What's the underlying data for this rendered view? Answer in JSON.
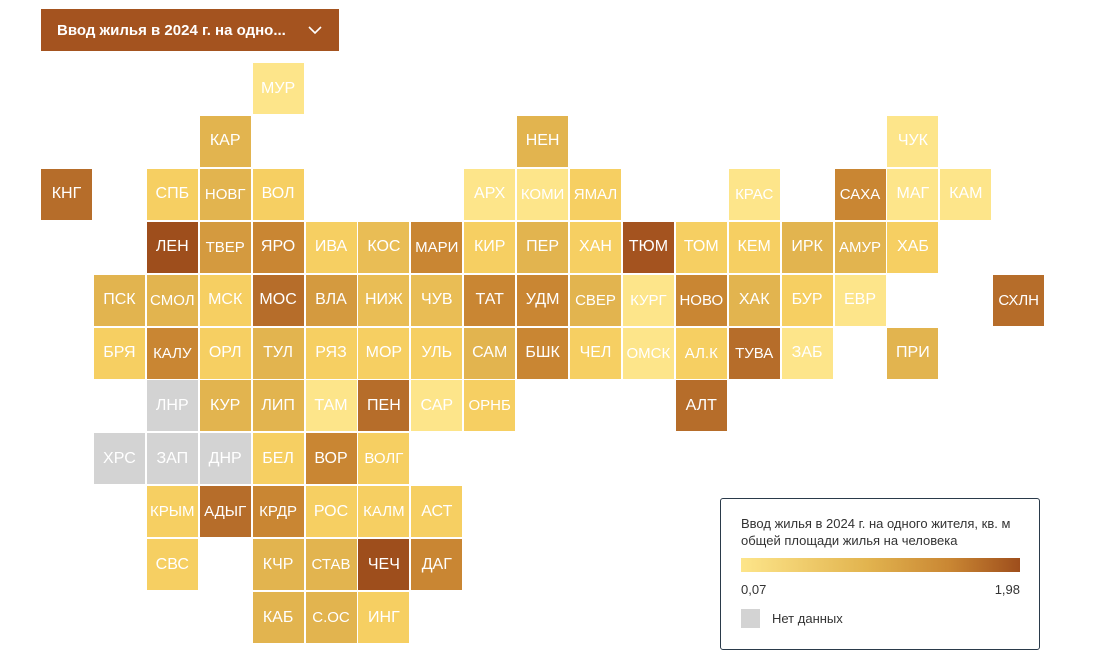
{
  "dropdown": {
    "label": "Ввод жилья в 2024 г. на одно...",
    "icon": "chevron-down-icon"
  },
  "legend": {
    "title": "Ввод жилья в 2024 г. на одного жителя, кв. м общей площади жилья на человека",
    "min_label": "0,07",
    "max_label": "1,98",
    "nodata_label": "Нет данных",
    "nodata_color": "#d3d3d3",
    "color_scale": [
      "#fde58a",
      "#e2b44f",
      "#c98633",
      "#9e4e1c"
    ]
  },
  "regions": [
    {
      "code": "МУР",
      "row": 0,
      "col": 4,
      "color": "#fde58a"
    },
    {
      "code": "КАР",
      "row": 1,
      "col": 3,
      "color": "#e2b44f"
    },
    {
      "code": "НЕН",
      "row": 1,
      "col": 9,
      "color": "#e2b44f"
    },
    {
      "code": "ЧУК",
      "row": 1,
      "col": 16,
      "color": "#fde58a"
    },
    {
      "code": "КНГ",
      "row": 2,
      "col": 0,
      "color": "#b66d2a"
    },
    {
      "code": "СПБ",
      "row": 2,
      "col": 2,
      "color": "#f6cf62"
    },
    {
      "code": "НОВГ",
      "row": 2,
      "col": 3,
      "color": "#e2b44f"
    },
    {
      "code": "ВОЛ",
      "row": 2,
      "col": 4,
      "color": "#f6cf62"
    },
    {
      "code": "АРХ",
      "row": 2,
      "col": 8,
      "color": "#fde58a"
    },
    {
      "code": "КОМИ",
      "row": 2,
      "col": 9,
      "color": "#fde58a"
    },
    {
      "code": "ЯМАЛ",
      "row": 2,
      "col": 10,
      "color": "#f6cf62"
    },
    {
      "code": "КРАС",
      "row": 2,
      "col": 13,
      "color": "#fde58a"
    },
    {
      "code": "САХА",
      "row": 2,
      "col": 15,
      "color": "#c98633"
    },
    {
      "code": "МАГ",
      "row": 2,
      "col": 16,
      "color": "#fde58a"
    },
    {
      "code": "КАМ",
      "row": 2,
      "col": 17,
      "color": "#fde58a"
    },
    {
      "code": "ЛЕН",
      "row": 3,
      "col": 2,
      "color": "#9e4e1c"
    },
    {
      "code": "ТВЕР",
      "row": 3,
      "col": 3,
      "color": "#d49a3f"
    },
    {
      "code": "ЯРО",
      "row": 3,
      "col": 4,
      "color": "#c98633"
    },
    {
      "code": "ИВА",
      "row": 3,
      "col": 5,
      "color": "#f6cf62"
    },
    {
      "code": "КОС",
      "row": 3,
      "col": 6,
      "color": "#e9bd55"
    },
    {
      "code": "МАРИ",
      "row": 3,
      "col": 7,
      "color": "#c98633"
    },
    {
      "code": "КИР",
      "row": 3,
      "col": 8,
      "color": "#f6cf62"
    },
    {
      "code": "ПЕР",
      "row": 3,
      "col": 9,
      "color": "#e2b44f"
    },
    {
      "code": "ХАН",
      "row": 3,
      "col": 10,
      "color": "#f6cf62"
    },
    {
      "code": "ТЮМ",
      "row": 3,
      "col": 11,
      "color": "#a4531f"
    },
    {
      "code": "ТОМ",
      "row": 3,
      "col": 12,
      "color": "#f6cf62"
    },
    {
      "code": "КЕМ",
      "row": 3,
      "col": 13,
      "color": "#f6cf62"
    },
    {
      "code": "ИРК",
      "row": 3,
      "col": 14,
      "color": "#e2b44f"
    },
    {
      "code": "АМУР",
      "row": 3,
      "col": 15,
      "color": "#e2b44f"
    },
    {
      "code": "ХАБ",
      "row": 3,
      "col": 16,
      "color": "#f6cf62"
    },
    {
      "code": "ПСК",
      "row": 4,
      "col": 1,
      "color": "#e2b44f"
    },
    {
      "code": "СМОЛ",
      "row": 4,
      "col": 2,
      "color": "#e2b44f"
    },
    {
      "code": "МСК",
      "row": 4,
      "col": 3,
      "color": "#f6cf62"
    },
    {
      "code": "МОС",
      "row": 4,
      "col": 4,
      "color": "#b66d2a"
    },
    {
      "code": "ВЛА",
      "row": 4,
      "col": 5,
      "color": "#d49a3f"
    },
    {
      "code": "НИЖ",
      "row": 4,
      "col": 6,
      "color": "#e9bd55"
    },
    {
      "code": "ЧУВ",
      "row": 4,
      "col": 7,
      "color": "#e9bd55"
    },
    {
      "code": "ТАТ",
      "row": 4,
      "col": 8,
      "color": "#c98633"
    },
    {
      "code": "УДМ",
      "row": 4,
      "col": 9,
      "color": "#c98633"
    },
    {
      "code": "СВЕР",
      "row": 4,
      "col": 10,
      "color": "#e2b44f"
    },
    {
      "code": "КУРГ",
      "row": 4,
      "col": 11,
      "color": "#fde58a"
    },
    {
      "code": "НОВО",
      "row": 4,
      "col": 12,
      "color": "#c98633"
    },
    {
      "code": "ХАК",
      "row": 4,
      "col": 13,
      "color": "#e2b44f"
    },
    {
      "code": "БУР",
      "row": 4,
      "col": 14,
      "color": "#f6cf62"
    },
    {
      "code": "ЕВР",
      "row": 4,
      "col": 15,
      "color": "#fde58a"
    },
    {
      "code": "СХЛН",
      "row": 4,
      "col": 18,
      "color": "#b66d2a"
    },
    {
      "code": "БРЯ",
      "row": 5,
      "col": 1,
      "color": "#f6cf62"
    },
    {
      "code": "КАЛУ",
      "row": 5,
      "col": 2,
      "color": "#c98633"
    },
    {
      "code": "ОРЛ",
      "row": 5,
      "col": 3,
      "color": "#f6cf62"
    },
    {
      "code": "ТУЛ",
      "row": 5,
      "col": 4,
      "color": "#e2b44f"
    },
    {
      "code": "РЯЗ",
      "row": 5,
      "col": 5,
      "color": "#f6cf62"
    },
    {
      "code": "МОР",
      "row": 5,
      "col": 6,
      "color": "#f6cf62"
    },
    {
      "code": "УЛЬ",
      "row": 5,
      "col": 7,
      "color": "#f6cf62"
    },
    {
      "code": "САМ",
      "row": 5,
      "col": 8,
      "color": "#e2b44f"
    },
    {
      "code": "БШК",
      "row": 5,
      "col": 9,
      "color": "#c98633"
    },
    {
      "code": "ЧЕЛ",
      "row": 5,
      "col": 10,
      "color": "#f6cf62"
    },
    {
      "code": "ОМСК",
      "row": 5,
      "col": 11,
      "color": "#fde58a"
    },
    {
      "code": "АЛ.К",
      "row": 5,
      "col": 12,
      "color": "#f6cf62"
    },
    {
      "code": "ТУВА",
      "row": 5,
      "col": 13,
      "color": "#b66d2a"
    },
    {
      "code": "ЗАБ",
      "row": 5,
      "col": 14,
      "color": "#fde58a"
    },
    {
      "code": "ПРИ",
      "row": 5,
      "col": 16,
      "color": "#e2b44f"
    },
    {
      "code": "ЛНР",
      "row": 6,
      "col": 2,
      "color": "#d3d3d3"
    },
    {
      "code": "КУР",
      "row": 6,
      "col": 3,
      "color": "#e2b44f"
    },
    {
      "code": "ЛИП",
      "row": 6,
      "col": 4,
      "color": "#e2b44f"
    },
    {
      "code": "ТАМ",
      "row": 6,
      "col": 5,
      "color": "#fde58a"
    },
    {
      "code": "ПЕН",
      "row": 6,
      "col": 6,
      "color": "#b66d2a"
    },
    {
      "code": "САР",
      "row": 6,
      "col": 7,
      "color": "#fde58a"
    },
    {
      "code": "ОРНБ",
      "row": 6,
      "col": 8,
      "color": "#f6cf62"
    },
    {
      "code": "АЛТ",
      "row": 6,
      "col": 12,
      "color": "#b66d2a"
    },
    {
      "code": "ХРС",
      "row": 7,
      "col": 1,
      "color": "#d3d3d3"
    },
    {
      "code": "ЗАП",
      "row": 7,
      "col": 2,
      "color": "#d3d3d3"
    },
    {
      "code": "ДНР",
      "row": 7,
      "col": 3,
      "color": "#d3d3d3"
    },
    {
      "code": "БЕЛ",
      "row": 7,
      "col": 4,
      "color": "#f6cf62"
    },
    {
      "code": "ВОР",
      "row": 7,
      "col": 5,
      "color": "#c98633"
    },
    {
      "code": "ВОЛГ",
      "row": 7,
      "col": 6,
      "color": "#f6cf62"
    },
    {
      "code": "КРЫМ",
      "row": 8,
      "col": 2,
      "color": "#f6cf62"
    },
    {
      "code": "АДЫГ",
      "row": 8,
      "col": 3,
      "color": "#b66d2a"
    },
    {
      "code": "КРДР",
      "row": 8,
      "col": 4,
      "color": "#c98633"
    },
    {
      "code": "РОС",
      "row": 8,
      "col": 5,
      "color": "#f6cf62"
    },
    {
      "code": "КАЛМ",
      "row": 8,
      "col": 6,
      "color": "#f6cf62"
    },
    {
      "code": "АСТ",
      "row": 8,
      "col": 7,
      "color": "#f6cf62"
    },
    {
      "code": "СВС",
      "row": 9,
      "col": 2,
      "color": "#f6cf62"
    },
    {
      "code": "КЧР",
      "row": 9,
      "col": 4,
      "color": "#e2b44f"
    },
    {
      "code": "СТАВ",
      "row": 9,
      "col": 5,
      "color": "#e2b44f"
    },
    {
      "code": "ЧЕЧ",
      "row": 9,
      "col": 6,
      "color": "#9e4e1c"
    },
    {
      "code": "ДАГ",
      "row": 9,
      "col": 7,
      "color": "#c98633"
    },
    {
      "code": "КАБ",
      "row": 10,
      "col": 4,
      "color": "#e2b44f"
    },
    {
      "code": "С.ОС",
      "row": 10,
      "col": 5,
      "color": "#e2b44f"
    },
    {
      "code": "ИНГ",
      "row": 10,
      "col": 6,
      "color": "#f6cf62"
    }
  ]
}
